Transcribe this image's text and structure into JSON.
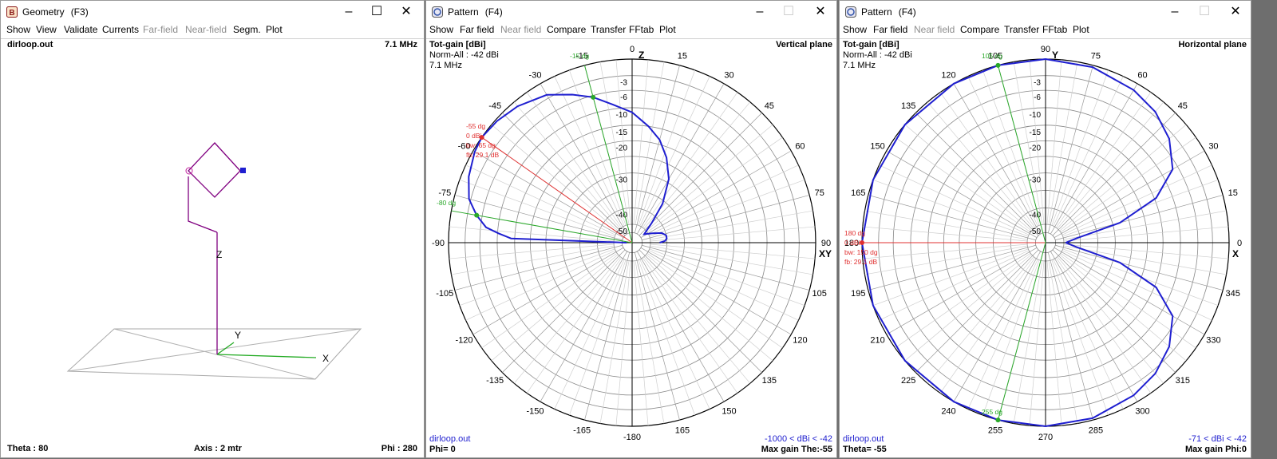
{
  "geometry": {
    "title": "Geometry",
    "fkey": "(F3)",
    "menu": [
      "Show",
      "View",
      "Validate",
      "Currents",
      "Far-field",
      "Near-field",
      "Segm.",
      "Plot"
    ],
    "menu_disabled": [
      "Far-field",
      "Near-field"
    ],
    "file": "dirloop.out",
    "freq": "7.1 MHz",
    "axis_z": "Z",
    "axis_y": "Y",
    "axis_x": "X",
    "status_theta": "Theta : 80",
    "status_axis": "Axis : 2 mtr",
    "status_phi": "Phi : 280",
    "colors": {
      "antenna": "#800080",
      "feed": "#0000ff",
      "x_axis": "#00aa00",
      "ground": "#a0a0a0"
    }
  },
  "pattern_vertical": {
    "title": "Pattern",
    "fkey": "(F4)",
    "menu": [
      "Show",
      "Far field",
      "Near field",
      "Compare",
      "Transfer",
      "FFtab",
      "Plot"
    ],
    "menu_disabled": [
      "Near field"
    ],
    "header_left": "Tot-gain [dBi]",
    "norm": "Norm-All : -42 dBi",
    "freq": "7.1 MHz",
    "plane": "Vertical plane",
    "file": "dirloop.out",
    "range": "-1000 < dBi < -42",
    "footer_left": "Phi= 0",
    "footer_right": "Max gain The:-55",
    "axis_top": "Z",
    "axis_right": "XY",
    "angle_labels": [
      "0",
      "15",
      "30",
      "45",
      "60",
      "75",
      "90",
      "105",
      "120",
      "135",
      "150",
      "165",
      "-180",
      "-165",
      "-150",
      "-135",
      "-120",
      "-105",
      "-90",
      "-75",
      "-60",
      "-45",
      "-30",
      "-15"
    ],
    "ring_labels": [
      "-3",
      "-6",
      "-10",
      "-15",
      "-20",
      "-30",
      "-40",
      "-50"
    ],
    "marker_main": [
      "-55 dg",
      "0 dBi",
      "bw: 65 dg",
      "fb: 29.1 dB"
    ],
    "marker_green_1": "-15 dg",
    "marker_green_2": "-80 dg"
  },
  "pattern_horizontal": {
    "title": "Pattern",
    "fkey": "(F4)",
    "menu": [
      "Show",
      "Far field",
      "Near field",
      "Compare",
      "Transfer",
      "FFtab",
      "Plot"
    ],
    "menu_disabled": [
      "Near field"
    ],
    "header_left": "Tot-gain [dBi]",
    "norm": "Norm-All : -42 dBi",
    "freq": "7.1 MHz",
    "plane": "Horizontal plane",
    "file": "dirloop.out",
    "range": "-71 < dBi < -42",
    "footer_left": "Theta= -55",
    "footer_right": "Max gain Phi:0",
    "axis_top": "Y",
    "axis_right": "X",
    "angle_labels": [
      "90",
      "75",
      "60",
      "45",
      "30",
      "15",
      "0",
      "345",
      "330",
      "315",
      "300",
      "285",
      "270",
      "255",
      "240",
      "225",
      "210",
      "195",
      "180",
      "165",
      "150",
      "135",
      "120",
      "105"
    ],
    "ring_labels": [
      "-3",
      "-6",
      "-10",
      "-15",
      "-20",
      "-30",
      "-40",
      "-50"
    ],
    "marker_main": [
      "180 dg",
      "0 dBi",
      "bw: 150 dg",
      "fb: 29.1 dB"
    ],
    "marker_green_1": "105 dg",
    "marker_green_2": "255 dg"
  }
}
